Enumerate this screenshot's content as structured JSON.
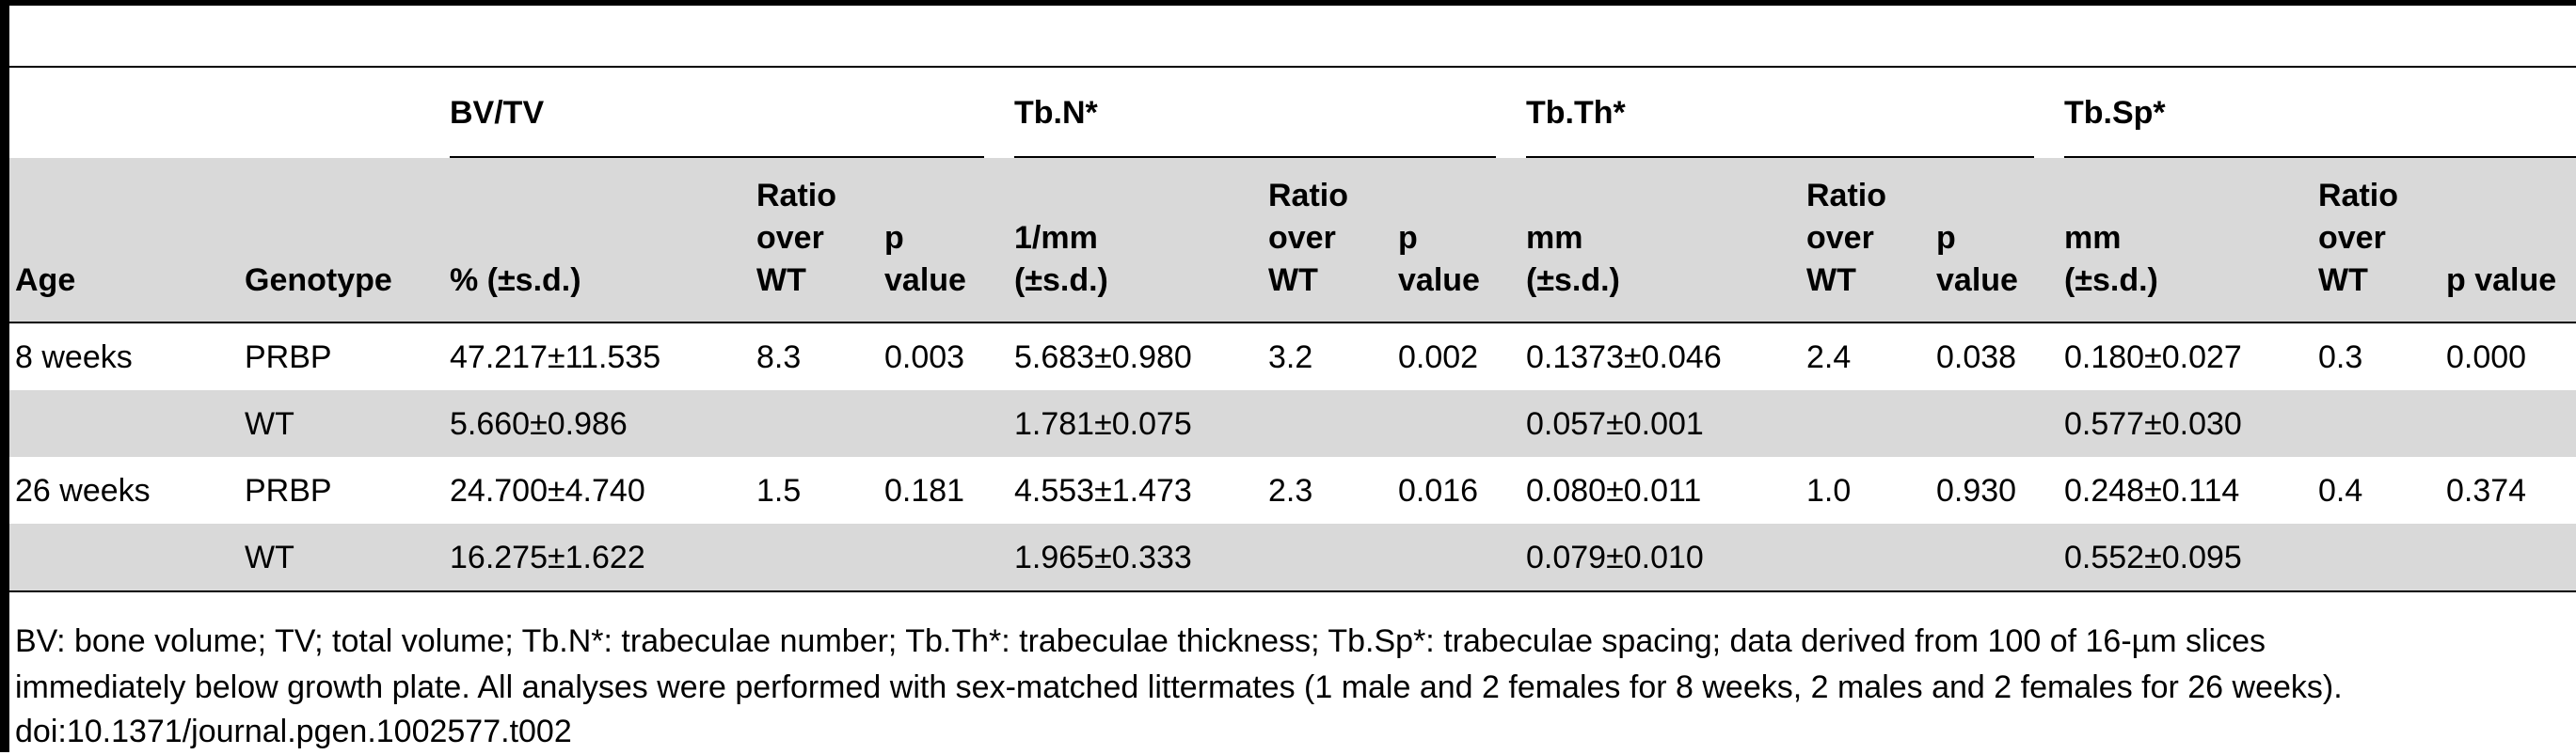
{
  "groups": [
    "BV/TV",
    "Tb.N*",
    "Tb.Th*",
    "Tb.Sp*"
  ],
  "header": {
    "age": "Age",
    "genotype": "Genotype",
    "bv_unit": "% (±s.d.)",
    "n_unit_1": "1/mm",
    "n_unit_2": "(±s.d.)",
    "th_unit_1": "mm",
    "th_unit_2": "(±s.d.)",
    "sp_unit_1": "mm",
    "sp_unit_2": "(±s.d.)",
    "ratio_1": "Ratio",
    "ratio_2": "over",
    "ratio_3": "WT",
    "p_1": "p",
    "p_2": "value",
    "p_last": "p value"
  },
  "rows": [
    [
      "8 weeks",
      "PRBP",
      "47.217±11.535",
      "8.3",
      "0.003",
      "5.683±0.980",
      "3.2",
      "0.002",
      "0.1373±0.046",
      "2.4",
      "0.038",
      "0.180±0.027",
      "0.3",
      "0.000"
    ],
    [
      "",
      "WT",
      "5.660±0.986",
      "",
      "",
      "1.781±0.075",
      "",
      "",
      "0.057±0.001",
      "",
      "",
      "0.577±0.030",
      "",
      ""
    ],
    [
      "26 weeks",
      "PRBP",
      "24.700±4.740",
      "1.5",
      "0.181",
      "4.553±1.473",
      "2.3",
      "0.016",
      "0.080±0.011",
      "1.0",
      "0.930",
      "0.248±0.114",
      "0.4",
      "0.374"
    ],
    [
      "",
      "WT",
      "16.275±1.622",
      "",
      "",
      "1.965±0.333",
      "",
      "",
      "0.079±0.010",
      "",
      "",
      "0.552±0.095",
      "",
      ""
    ]
  ],
  "footnote": {
    "line1": "BV: bone volume; TV; total volume; Tb.N*: trabeculae number; Tb.Th*: trabeculae thickness; Tb.Sp*: trabeculae spacing; data derived from 100 of 16-µm slices",
    "line2": "immediately below growth plate. All analyses were performed with sex-matched littermates (1 male and 2 females for 8 weeks, 2 males and 2 females for 26 weeks).",
    "line3": "doi:10.1371/journal.pgen.1002577.t002"
  }
}
